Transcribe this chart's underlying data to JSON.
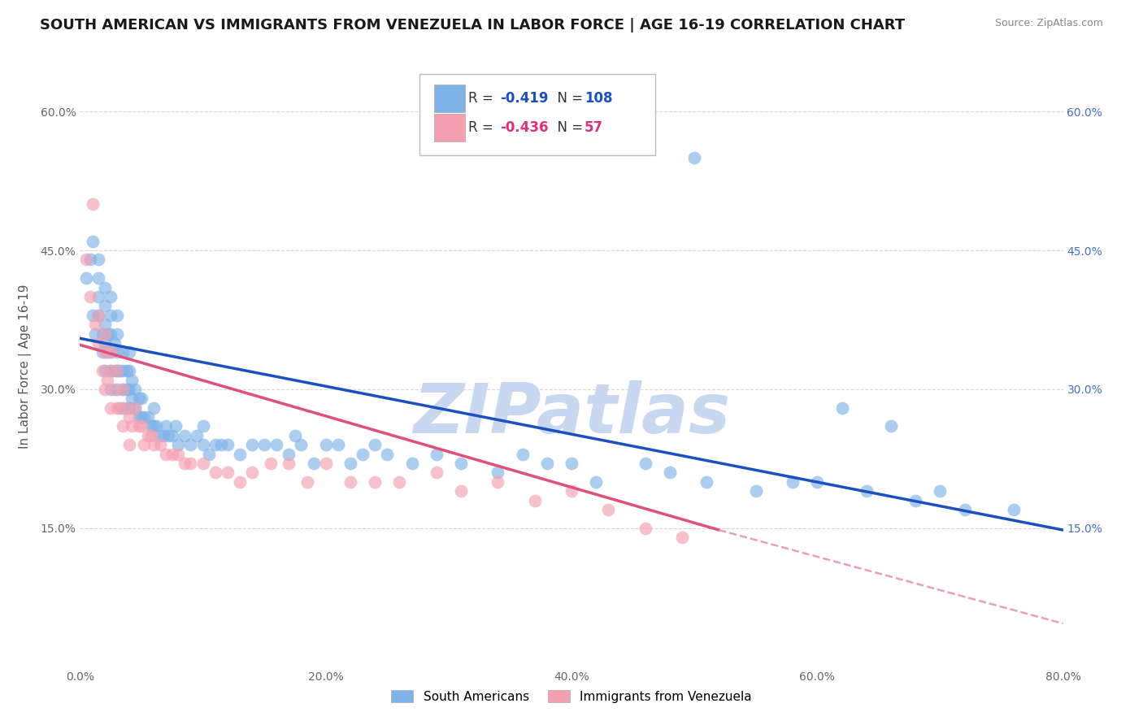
{
  "title": "SOUTH AMERICAN VS IMMIGRANTS FROM VENEZUELA IN LABOR FORCE | AGE 16-19 CORRELATION CHART",
  "source": "Source: ZipAtlas.com",
  "ylabel": "In Labor Force | Age 16-19",
  "xmin": 0.0,
  "xmax": 0.8,
  "ymin": 0.0,
  "ymax": 0.65,
  "yticks": [
    0.0,
    0.15,
    0.3,
    0.45,
    0.6
  ],
  "ytick_labels_left": [
    "",
    "15.0%",
    "30.0%",
    "45.0%",
    "60.0%"
  ],
  "ytick_labels_right": [
    "",
    "15.0%",
    "30.0%",
    "45.0%",
    "60.0%"
  ],
  "xticks": [
    0.0,
    0.2,
    0.4,
    0.6,
    0.8
  ],
  "xtick_labels": [
    "0.0%",
    "20.0%",
    "40.0%",
    "60.0%",
    "80.0%"
  ],
  "legend_r_blue": "-0.419",
  "legend_n_blue": "108",
  "legend_r_pink": "-0.436",
  "legend_n_pink": "57",
  "color_blue": "#7EB3E8",
  "color_pink": "#F4A0B0",
  "line_blue": "#1A50C0",
  "line_pink": "#E0507A",
  "line_pink_dash": "#E8A0B8",
  "watermark": "ZIPatlas",
  "watermark_color": "#C8D8F0",
  "blue_line_x0": 0.0,
  "blue_line_y0": 0.355,
  "blue_line_x1": 0.8,
  "blue_line_y1": 0.148,
  "pink_line_x0": 0.0,
  "pink_line_y0": 0.348,
  "pink_line_x1_solid": 0.52,
  "pink_line_y1_solid": 0.148,
  "pink_line_x1_dash": 0.8,
  "pink_line_y1_dash": 0.047,
  "south_americans_x": [
    0.005,
    0.008,
    0.01,
    0.01,
    0.012,
    0.015,
    0.015,
    0.015,
    0.015,
    0.018,
    0.018,
    0.02,
    0.02,
    0.02,
    0.02,
    0.02,
    0.022,
    0.022,
    0.025,
    0.025,
    0.025,
    0.025,
    0.025,
    0.025,
    0.028,
    0.028,
    0.03,
    0.03,
    0.03,
    0.03,
    0.03,
    0.032,
    0.035,
    0.035,
    0.035,
    0.035,
    0.038,
    0.038,
    0.04,
    0.04,
    0.04,
    0.04,
    0.042,
    0.042,
    0.045,
    0.045,
    0.048,
    0.048,
    0.05,
    0.05,
    0.052,
    0.055,
    0.058,
    0.06,
    0.06,
    0.062,
    0.065,
    0.068,
    0.07,
    0.072,
    0.075,
    0.078,
    0.08,
    0.085,
    0.09,
    0.095,
    0.1,
    0.1,
    0.105,
    0.11,
    0.115,
    0.12,
    0.13,
    0.14,
    0.15,
    0.16,
    0.17,
    0.175,
    0.18,
    0.19,
    0.2,
    0.21,
    0.22,
    0.23,
    0.24,
    0.25,
    0.27,
    0.29,
    0.31,
    0.34,
    0.36,
    0.38,
    0.4,
    0.42,
    0.46,
    0.48,
    0.51,
    0.55,
    0.6,
    0.64,
    0.68,
    0.7,
    0.72,
    0.76,
    0.5,
    0.58,
    0.62,
    0.66
  ],
  "south_americans_y": [
    0.42,
    0.44,
    0.38,
    0.46,
    0.36,
    0.38,
    0.4,
    0.42,
    0.44,
    0.34,
    0.36,
    0.32,
    0.35,
    0.37,
    0.39,
    0.41,
    0.34,
    0.36,
    0.3,
    0.32,
    0.34,
    0.36,
    0.38,
    0.4,
    0.32,
    0.35,
    0.3,
    0.32,
    0.34,
    0.36,
    0.38,
    0.32,
    0.28,
    0.3,
    0.32,
    0.34,
    0.3,
    0.32,
    0.28,
    0.3,
    0.32,
    0.34,
    0.29,
    0.31,
    0.28,
    0.3,
    0.27,
    0.29,
    0.27,
    0.29,
    0.27,
    0.27,
    0.26,
    0.26,
    0.28,
    0.26,
    0.25,
    0.25,
    0.26,
    0.25,
    0.25,
    0.26,
    0.24,
    0.25,
    0.24,
    0.25,
    0.24,
    0.26,
    0.23,
    0.24,
    0.24,
    0.24,
    0.23,
    0.24,
    0.24,
    0.24,
    0.23,
    0.25,
    0.24,
    0.22,
    0.24,
    0.24,
    0.22,
    0.23,
    0.24,
    0.23,
    0.22,
    0.23,
    0.22,
    0.21,
    0.23,
    0.22,
    0.22,
    0.2,
    0.22,
    0.21,
    0.2,
    0.19,
    0.2,
    0.19,
    0.18,
    0.19,
    0.17,
    0.17,
    0.55,
    0.2,
    0.28,
    0.26
  ],
  "venezuela_x": [
    0.005,
    0.008,
    0.01,
    0.012,
    0.015,
    0.015,
    0.018,
    0.02,
    0.02,
    0.02,
    0.022,
    0.025,
    0.025,
    0.025,
    0.028,
    0.03,
    0.03,
    0.032,
    0.035,
    0.035,
    0.038,
    0.04,
    0.04,
    0.042,
    0.045,
    0.048,
    0.05,
    0.052,
    0.055,
    0.058,
    0.06,
    0.065,
    0.07,
    0.075,
    0.08,
    0.085,
    0.09,
    0.1,
    0.11,
    0.12,
    0.13,
    0.14,
    0.155,
    0.17,
    0.185,
    0.2,
    0.22,
    0.24,
    0.26,
    0.29,
    0.31,
    0.34,
    0.37,
    0.4,
    0.43,
    0.46,
    0.49
  ],
  "venezuela_y": [
    0.44,
    0.4,
    0.5,
    0.37,
    0.35,
    0.38,
    0.32,
    0.34,
    0.3,
    0.36,
    0.31,
    0.32,
    0.28,
    0.34,
    0.3,
    0.28,
    0.32,
    0.28,
    0.3,
    0.26,
    0.28,
    0.27,
    0.24,
    0.26,
    0.28,
    0.26,
    0.26,
    0.24,
    0.25,
    0.25,
    0.24,
    0.24,
    0.23,
    0.23,
    0.23,
    0.22,
    0.22,
    0.22,
    0.21,
    0.21,
    0.2,
    0.21,
    0.22,
    0.22,
    0.2,
    0.22,
    0.2,
    0.2,
    0.2,
    0.21,
    0.19,
    0.2,
    0.18,
    0.19,
    0.17,
    0.15,
    0.14
  ],
  "grid_color": "#D8D8D8",
  "background_color": "#FFFFFF",
  "title_fontsize": 13,
  "axis_label_fontsize": 11,
  "tick_fontsize": 10,
  "legend_fontsize": 13
}
